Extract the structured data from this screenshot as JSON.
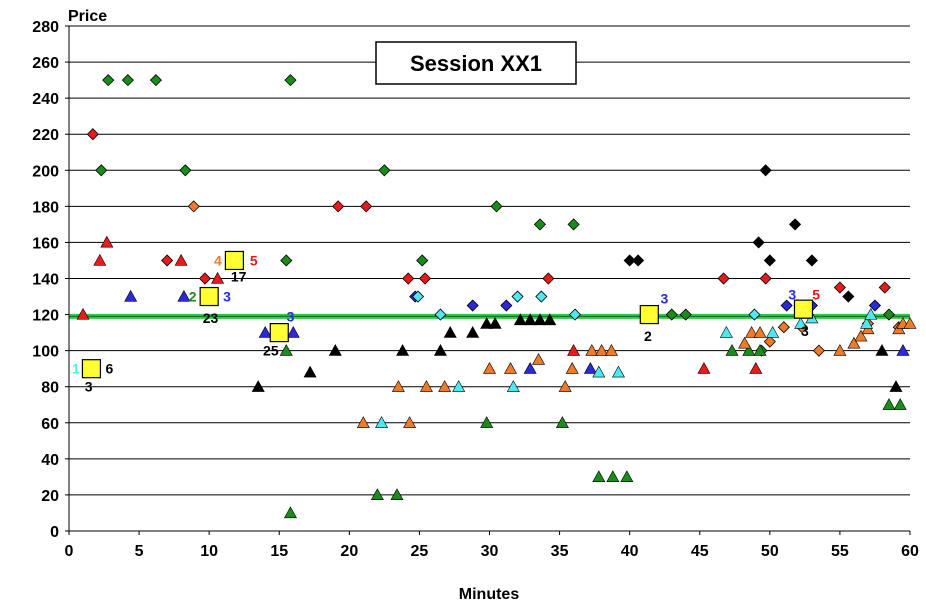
{
  "chart_data": {
    "type": "scatter",
    "title": "Session XX1",
    "xlabel": "Minutes",
    "ylabel": "Price",
    "xlim": [
      0,
      60
    ],
    "ylim": [
      0,
      280
    ],
    "xticks": [
      0,
      5,
      10,
      15,
      20,
      25,
      30,
      35,
      40,
      45,
      50,
      55,
      60
    ],
    "yticks": [
      0,
      20,
      40,
      60,
      80,
      100,
      120,
      140,
      160,
      180,
      200,
      220,
      240,
      260,
      280
    ],
    "grid": "horizontal",
    "reference_line": {
      "y": 119,
      "color": "#2ec84a"
    },
    "colors": {
      "red": "#e81a1a",
      "green": "#1a8c1a",
      "blue": "#2a2ad8",
      "black": "#000000",
      "orange": "#ee7a2a",
      "cyan": "#4fe8f0",
      "yellow": "#ffff33"
    },
    "series": [
      {
        "marker": "diamond",
        "color": "red",
        "points": [
          [
            1.7,
            220
          ],
          [
            7,
            150
          ],
          [
            9.7,
            140
          ],
          [
            19.2,
            180
          ],
          [
            21.2,
            180
          ],
          [
            24.2,
            140
          ],
          [
            25.4,
            140
          ],
          [
            34.2,
            140
          ],
          [
            46.7,
            140
          ],
          [
            49.7,
            140
          ],
          [
            55,
            135
          ],
          [
            58.2,
            135
          ]
        ]
      },
      {
        "marker": "triangle",
        "color": "red",
        "points": [
          [
            1,
            120
          ],
          [
            2.2,
            150
          ],
          [
            2.7,
            160
          ],
          [
            8,
            150
          ],
          [
            10.6,
            140
          ],
          [
            36,
            100
          ],
          [
            45.3,
            90
          ],
          [
            49,
            90
          ]
        ]
      },
      {
        "marker": "diamond",
        "color": "green",
        "points": [
          [
            2.3,
            200
          ],
          [
            2.8,
            250
          ],
          [
            4.2,
            250
          ],
          [
            6.2,
            250
          ],
          [
            8.3,
            200
          ],
          [
            15.5,
            150
          ],
          [
            15.8,
            250
          ],
          [
            22.5,
            200
          ],
          [
            25.2,
            150
          ],
          [
            30.5,
            180
          ],
          [
            33.6,
            170
          ],
          [
            36,
            170
          ],
          [
            43,
            120
          ],
          [
            44,
            120
          ],
          [
            49.4,
            100
          ],
          [
            58.5,
            120
          ]
        ]
      },
      {
        "marker": "triangle",
        "color": "green",
        "points": [
          [
            15.5,
            100
          ],
          [
            15.8,
            10
          ],
          [
            22,
            20
          ],
          [
            23.4,
            20
          ],
          [
            29.8,
            60
          ],
          [
            35.2,
            60
          ],
          [
            37.8,
            30
          ],
          [
            38.8,
            30
          ],
          [
            39.8,
            30
          ],
          [
            47.3,
            100
          ],
          [
            48.5,
            100
          ],
          [
            49.3,
            100
          ],
          [
            58.5,
            70
          ],
          [
            59.3,
            70
          ]
        ]
      },
      {
        "marker": "diamond",
        "color": "blue",
        "points": [
          [
            24.7,
            130
          ],
          [
            28.8,
            125
          ],
          [
            31.2,
            125
          ],
          [
            51.2,
            125
          ],
          [
            53,
            125
          ],
          [
            57.5,
            125
          ]
        ]
      },
      {
        "marker": "triangle",
        "color": "blue",
        "points": [
          [
            4.4,
            130
          ],
          [
            8.2,
            130
          ],
          [
            14,
            110
          ],
          [
            16,
            110
          ],
          [
            32.9,
            90
          ],
          [
            37.2,
            90
          ],
          [
            59.5,
            100
          ]
        ]
      },
      {
        "marker": "diamond",
        "color": "black",
        "points": [
          [
            40,
            150
          ],
          [
            40.6,
            150
          ],
          [
            49.2,
            160
          ],
          [
            49.7,
            200
          ],
          [
            50,
            150
          ],
          [
            51.8,
            170
          ],
          [
            53,
            150
          ],
          [
            55.6,
            130
          ]
        ]
      },
      {
        "marker": "triangle",
        "color": "black",
        "points": [
          [
            13.5,
            80
          ],
          [
            17.2,
            88
          ],
          [
            19,
            100
          ],
          [
            23.8,
            100
          ],
          [
            26.5,
            100
          ],
          [
            27.2,
            110
          ],
          [
            28.8,
            110
          ],
          [
            29.8,
            115
          ],
          [
            30.4,
            115
          ],
          [
            32.2,
            117
          ],
          [
            32.9,
            117
          ],
          [
            33.6,
            117
          ],
          [
            34.3,
            117
          ],
          [
            58,
            100
          ],
          [
            59,
            80
          ]
        ]
      },
      {
        "marker": "diamond",
        "color": "orange",
        "points": [
          [
            8.9,
            180
          ],
          [
            50,
            105
          ],
          [
            51,
            113
          ],
          [
            52.3,
            113
          ],
          [
            53.5,
            100
          ],
          [
            57,
            115
          ],
          [
            59.2,
            113
          ]
        ]
      },
      {
        "marker": "triangle",
        "color": "orange",
        "points": [
          [
            21,
            60
          ],
          [
            23.5,
            80
          ],
          [
            24.3,
            60
          ],
          [
            25.5,
            80
          ],
          [
            26.8,
            80
          ],
          [
            30,
            90
          ],
          [
            31.5,
            90
          ],
          [
            33.5,
            95
          ],
          [
            35.4,
            80
          ],
          [
            35.9,
            90
          ],
          [
            37.3,
            100
          ],
          [
            38,
            100
          ],
          [
            38.7,
            100
          ],
          [
            48.2,
            104
          ],
          [
            48.7,
            110
          ],
          [
            49.3,
            110
          ],
          [
            55,
            100
          ],
          [
            56,
            104
          ],
          [
            56.5,
            108
          ],
          [
            57,
            112
          ],
          [
            59.2,
            112
          ],
          [
            59.5,
            115
          ],
          [
            60,
            115
          ]
        ]
      },
      {
        "marker": "diamond",
        "color": "cyan",
        "points": [
          [
            24.9,
            130
          ],
          [
            26.5,
            120
          ],
          [
            32,
            130
          ],
          [
            33.7,
            130
          ],
          [
            36.1,
            120
          ],
          [
            48.9,
            120
          ]
        ]
      },
      {
        "marker": "triangle",
        "color": "cyan",
        "points": [
          [
            22.3,
            60
          ],
          [
            27.8,
            80
          ],
          [
            31.7,
            80
          ],
          [
            37.8,
            88
          ],
          [
            39.2,
            88
          ],
          [
            46.9,
            110
          ],
          [
            50.2,
            110
          ],
          [
            52.2,
            115
          ],
          [
            53,
            118
          ],
          [
            56.9,
            115
          ],
          [
            57.2,
            120
          ]
        ]
      },
      {
        "marker": "square",
        "color": "yellow",
        "points": [
          [
            1.6,
            90
          ],
          [
            10,
            130
          ],
          [
            11.8,
            150
          ],
          [
            15,
            110
          ],
          [
            41.4,
            120
          ],
          [
            52.4,
            123
          ]
        ]
      }
    ],
    "annotations": [
      {
        "text": "1",
        "x": 0.5,
        "y": 90,
        "color": "cyan",
        "anchor": "middle"
      },
      {
        "text": "6",
        "x": 2.6,
        "y": 90,
        "color": "black",
        "anchor": "start"
      },
      {
        "text": "3",
        "x": 1.4,
        "y": 80,
        "color": "black",
        "anchor": "middle"
      },
      {
        "text": "2",
        "x": 9.1,
        "y": 130,
        "color": "green",
        "anchor": "end"
      },
      {
        "text": "3",
        "x": 11,
        "y": 130,
        "color": "blue",
        "anchor": "start"
      },
      {
        "text": "23",
        "x": 10.1,
        "y": 118,
        "color": "black",
        "anchor": "middle"
      },
      {
        "text": "4",
        "x": 10.9,
        "y": 150,
        "color": "orange",
        "anchor": "end"
      },
      {
        "text": "5",
        "x": 12.9,
        "y": 150,
        "color": "red",
        "anchor": "start"
      },
      {
        "text": "17",
        "x": 12.1,
        "y": 141,
        "color": "black",
        "anchor": "middle"
      },
      {
        "text": "3",
        "x": 15.8,
        "y": 119,
        "color": "blue",
        "anchor": "middle"
      },
      {
        "text": "25",
        "x": 14.4,
        "y": 100,
        "color": "black",
        "anchor": "middle"
      },
      {
        "text": "3",
        "x": 42.2,
        "y": 129,
        "color": "blue",
        "anchor": "start"
      },
      {
        "text": "2",
        "x": 41.3,
        "y": 108,
        "color": "black",
        "anchor": "middle"
      },
      {
        "text": "3",
        "x": 51.6,
        "y": 131,
        "color": "blue",
        "anchor": "middle"
      },
      {
        "text": "5",
        "x": 53.3,
        "y": 131,
        "color": "red",
        "anchor": "middle"
      },
      {
        "text": "3",
        "x": 52.5,
        "y": 111,
        "color": "black",
        "anchor": "middle"
      }
    ]
  }
}
